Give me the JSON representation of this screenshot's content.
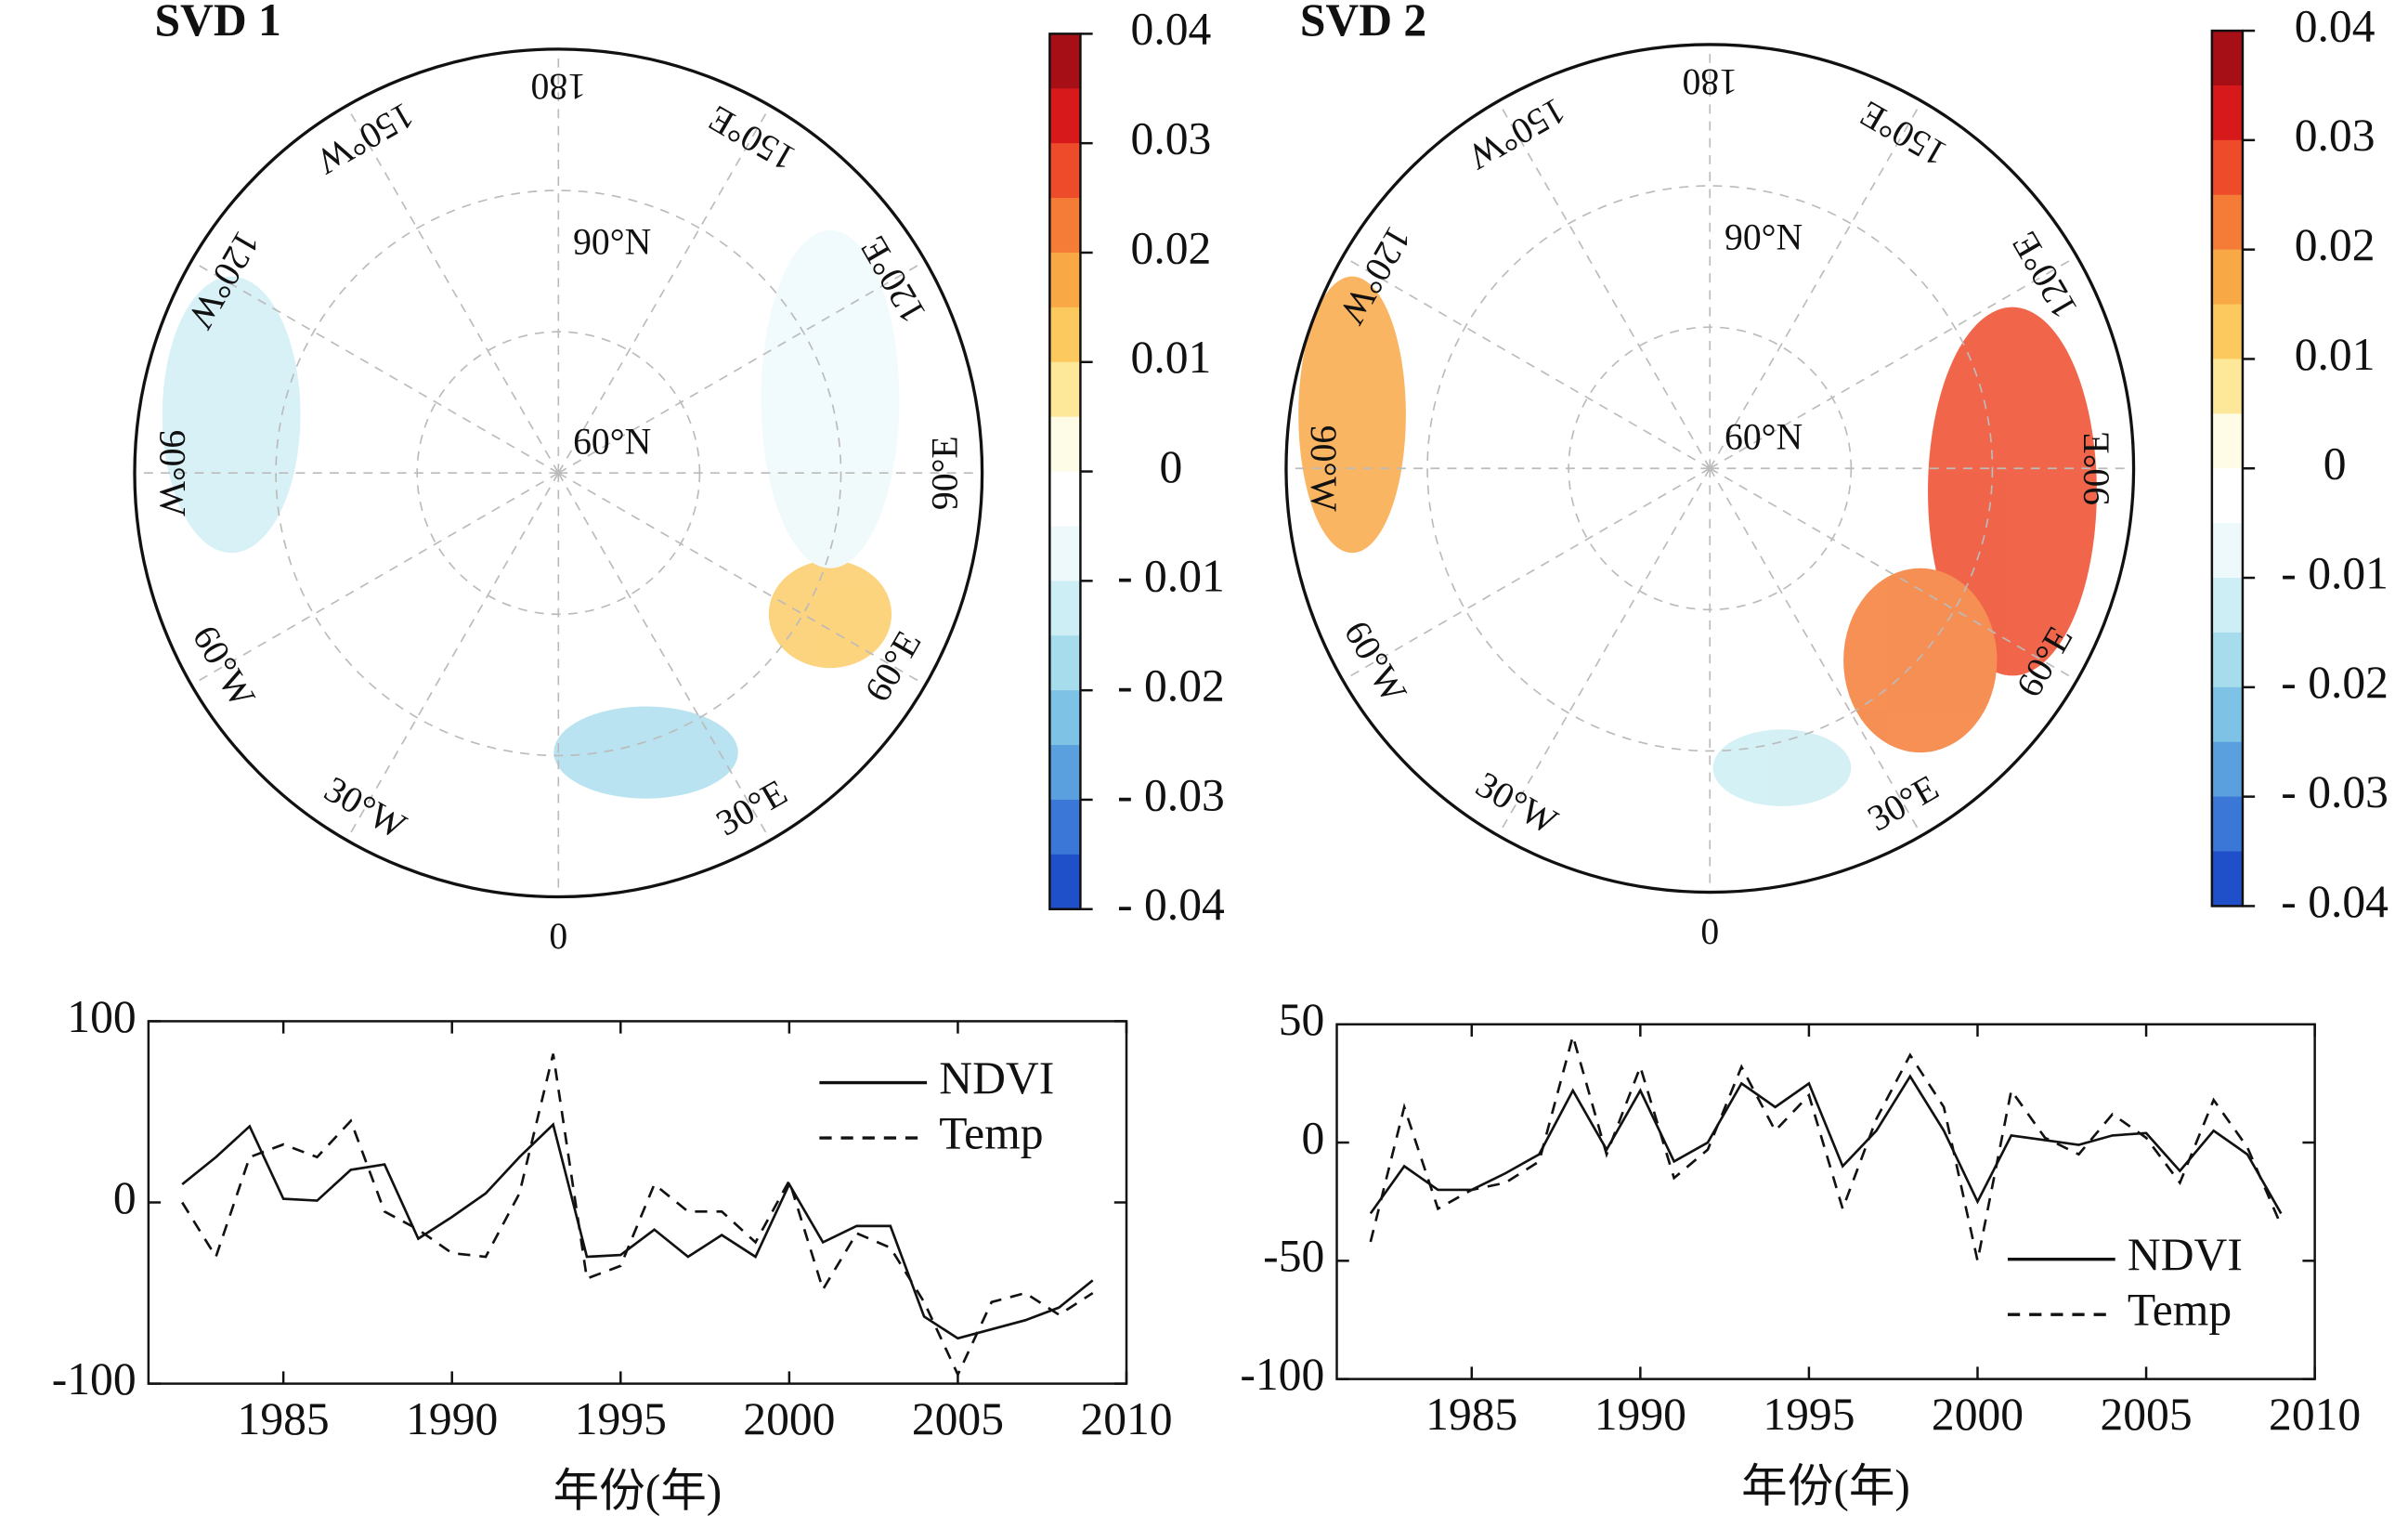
{
  "maps": [
    {
      "title": "SVD 1",
      "lon_labels": [
        "180",
        "150°E",
        "120°E",
        "90°E",
        "60°E",
        "30°E",
        "0",
        "30°W",
        "60°W",
        "90°W",
        "120°W",
        "150°W"
      ],
      "lat_labels": [
        "90°N",
        "60°N"
      ],
      "colorbar": {
        "lim": [
          -0.04,
          0.04
        ],
        "colors": [
          "#a50f15",
          "#d7191c",
          "#ee4b2b",
          "#f57c36",
          "#f9a846",
          "#fcc95e",
          "#fde89a",
          "#fefbe6",
          "#ffffff",
          "#eef9fb",
          "#cdeef4",
          "#a7dcec",
          "#7ec2e6",
          "#5aa0de",
          "#3a77d6",
          "#1f4fc9"
        ],
        "ticks": [
          0.04,
          0.03,
          0.02,
          0.01,
          0,
          {
            "value": -0.01,
            "label": "- 0.01"
          },
          {
            "value": -0.02,
            "label": "- 0.02"
          },
          {
            "value": -0.03,
            "label": "- 0.03"
          },
          {
            "value": -0.04,
            "label": "- 0.04"
          }
        ]
      }
    },
    {
      "title": "SVD 2",
      "lon_labels": [
        "180",
        "150°E",
        "120°E",
        "90°E",
        "60°E",
        "30°E",
        "0",
        "30°W",
        "60°W",
        "90°W",
        "120°W",
        "150°W"
      ],
      "lat_labels": [
        "90°N",
        "60°N"
      ],
      "colorbar": {
        "lim": [
          -0.04,
          0.04
        ],
        "colors": [
          "#a50f15",
          "#d7191c",
          "#ee4b2b",
          "#f57c36",
          "#f9a846",
          "#fcc95e",
          "#fde89a",
          "#fefbe6",
          "#ffffff",
          "#eef9fb",
          "#cdeef4",
          "#a7dcec",
          "#7ec2e6",
          "#5aa0de",
          "#3a77d6",
          "#1f4fc9"
        ],
        "ticks": [
          0.04,
          0.03,
          0.02,
          0.01,
          0,
          {
            "value": -0.01,
            "label": "- 0.01"
          },
          {
            "value": -0.02,
            "label": "- 0.02"
          },
          {
            "value": -0.03,
            "label": "- 0.03"
          },
          {
            "value": -0.04,
            "label": "- 0.04"
          }
        ]
      }
    }
  ],
  "chart_data": [
    {
      "type": "line",
      "x_label": "年份(年)",
      "legend": "upper right",
      "x": [
        1982,
        1983,
        1984,
        1985,
        1986,
        1987,
        1988,
        1989,
        1990,
        1991,
        1992,
        1993,
        1994,
        1995,
        1996,
        1997,
        1998,
        1999,
        2000,
        2001,
        2002,
        2003,
        2004,
        2005,
        2006,
        2007,
        2008,
        2009
      ],
      "xlim": [
        1981,
        2010
      ],
      "xticks": [
        1985,
        1990,
        1995,
        2000,
        2005,
        2010
      ],
      "ylim": [
        -100,
        100
      ],
      "yticks": [
        -100,
        0,
        100
      ],
      "series": [
        {
          "name": "NDVI",
          "color": "#111111",
          "line_style": "solid",
          "values": [
            10,
            25,
            42,
            2,
            1,
            18,
            21,
            -20,
            -8,
            5,
            25,
            43,
            -30,
            -29,
            -15,
            -30,
            -18,
            -30,
            10,
            -22,
            -13,
            -13,
            -63,
            -75,
            -70,
            -65,
            -58,
            -43
          ]
        },
        {
          "name": "Temp",
          "color": "#111111",
          "line_style": "dashed",
          "values": [
            0,
            -30,
            25,
            32,
            25,
            45,
            -5,
            -15,
            -28,
            -30,
            5,
            82,
            -42,
            -35,
            10,
            -5,
            -5,
            -22,
            12,
            -48,
            -17,
            -25,
            -55,
            -95,
            -55,
            -50,
            -62,
            -50
          ]
        }
      ]
    },
    {
      "type": "line",
      "x_label": "年份(年)",
      "legend": "lower right",
      "x": [
        1982,
        1983,
        1984,
        1985,
        1986,
        1987,
        1988,
        1989,
        1990,
        1991,
        1992,
        1993,
        1994,
        1995,
        1996,
        1997,
        1998,
        1999,
        2000,
        2001,
        2002,
        2003,
        2004,
        2005,
        2006,
        2007,
        2008,
        2009
      ],
      "xlim": [
        1981,
        2010
      ],
      "xticks": [
        1985,
        1990,
        1995,
        2000,
        2005,
        2010
      ],
      "ylim": [
        -100,
        50
      ],
      "yticks": [
        -100,
        -50,
        0,
        50
      ],
      "series": [
        {
          "name": "NDVI",
          "color": "#111111",
          "line_style": "solid",
          "values": [
            -30,
            -10,
            -20,
            -20,
            -13,
            -5,
            22,
            -3,
            22,
            -8,
            0,
            25,
            15,
            25,
            -10,
            5,
            28,
            5,
            -25,
            3,
            1,
            -1,
            3,
            4,
            -12,
            5,
            -5,
            -30
          ]
        },
        {
          "name": "Temp",
          "color": "#111111",
          "line_style": "dashed",
          "values": [
            -42,
            15,
            -28,
            -20,
            -17,
            -8,
            45,
            -5,
            32,
            -15,
            -3,
            32,
            5,
            20,
            -28,
            10,
            37,
            15,
            -50,
            22,
            2,
            -5,
            12,
            2,
            -17,
            18,
            -2,
            -35
          ]
        }
      ]
    }
  ]
}
